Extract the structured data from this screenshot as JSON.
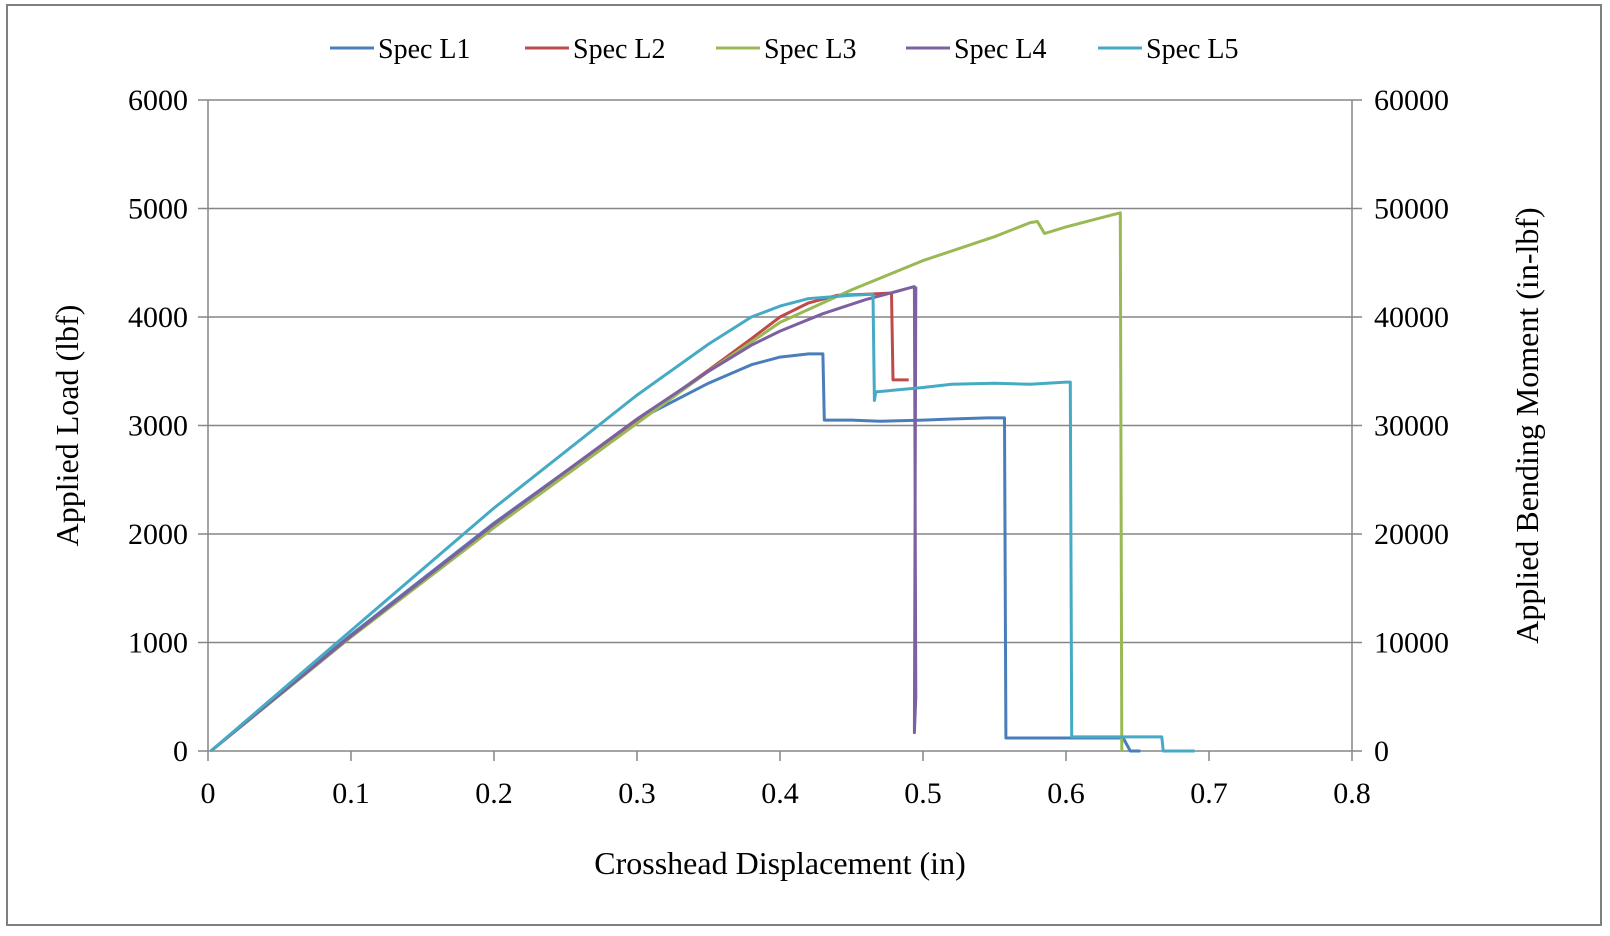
{
  "chart_data": {
    "type": "line",
    "title": "",
    "xlabel": "Crosshead Displacement (in)",
    "ylabel": "Applied Load (lbf)",
    "y2label": "Applied Bending Moment (in-lbf)",
    "xlim": [
      0,
      0.8
    ],
    "ylim": [
      0,
      6000
    ],
    "y2lim": [
      0,
      60000
    ],
    "xticks": [
      "0",
      "0.1",
      "0.2",
      "0.3",
      "0.4",
      "0.5",
      "0.6",
      "0.7",
      "0.8"
    ],
    "yticks": [
      "0",
      "1000",
      "2000",
      "3000",
      "4000",
      "5000",
      "6000"
    ],
    "y2ticks": [
      "0",
      "10000",
      "20000",
      "30000",
      "40000",
      "50000",
      "60000"
    ],
    "grid": true,
    "legend_position": "top",
    "series": [
      {
        "name": "Spec L1",
        "color": "#4a7ebb",
        "points": [
          [
            0.002,
            0
          ],
          [
            0.1,
            1070
          ],
          [
            0.2,
            2100
          ],
          [
            0.3,
            3050
          ],
          [
            0.35,
            3390
          ],
          [
            0.38,
            3560
          ],
          [
            0.4,
            3630
          ],
          [
            0.42,
            3660
          ],
          [
            0.43,
            3660
          ],
          [
            0.431,
            3050
          ],
          [
            0.45,
            3050
          ],
          [
            0.47,
            3040
          ],
          [
            0.5,
            3050
          ],
          [
            0.52,
            3060
          ],
          [
            0.545,
            3070
          ],
          [
            0.557,
            3070
          ],
          [
            0.558,
            120
          ],
          [
            0.62,
            120
          ],
          [
            0.64,
            120
          ],
          [
            0.645,
            0
          ],
          [
            0.652,
            0
          ]
        ]
      },
      {
        "name": "Spec L2",
        "color": "#be4b48",
        "points": [
          [
            0.002,
            0
          ],
          [
            0.1,
            1060
          ],
          [
            0.2,
            2080
          ],
          [
            0.3,
            3040
          ],
          [
            0.35,
            3510
          ],
          [
            0.38,
            3800
          ],
          [
            0.4,
            4000
          ],
          [
            0.42,
            4130
          ],
          [
            0.44,
            4200
          ],
          [
            0.46,
            4210
          ],
          [
            0.478,
            4220
          ],
          [
            0.479,
            3420
          ],
          [
            0.49,
            3420
          ]
        ]
      },
      {
        "name": "Spec L3",
        "color": "#98b954",
        "points": [
          [
            0.002,
            0
          ],
          [
            0.1,
            1050
          ],
          [
            0.2,
            2060
          ],
          [
            0.3,
            3020
          ],
          [
            0.35,
            3500
          ],
          [
            0.4,
            3950
          ],
          [
            0.45,
            4250
          ],
          [
            0.5,
            4520
          ],
          [
            0.55,
            4740
          ],
          [
            0.575,
            4870
          ],
          [
            0.58,
            4880
          ],
          [
            0.585,
            4770
          ],
          [
            0.6,
            4830
          ],
          [
            0.62,
            4900
          ],
          [
            0.638,
            4960
          ],
          [
            0.639,
            0
          ]
        ]
      },
      {
        "name": "Spec L4",
        "color": "#7d60a0",
        "points": [
          [
            0.002,
            0
          ],
          [
            0.1,
            1060
          ],
          [
            0.2,
            2090
          ],
          [
            0.3,
            3060
          ],
          [
            0.35,
            3500
          ],
          [
            0.38,
            3740
          ],
          [
            0.4,
            3870
          ],
          [
            0.43,
            4030
          ],
          [
            0.46,
            4160
          ],
          [
            0.48,
            4230
          ],
          [
            0.494,
            4280
          ],
          [
            0.495,
            500
          ],
          [
            0.494,
            170
          ],
          [
            0.495,
            4280
          ]
        ]
      },
      {
        "name": "Spec L5",
        "color": "#46aac5",
        "points": [
          [
            0.002,
            0
          ],
          [
            0.1,
            1110
          ],
          [
            0.2,
            2240
          ],
          [
            0.3,
            3280
          ],
          [
            0.35,
            3750
          ],
          [
            0.38,
            4000
          ],
          [
            0.4,
            4100
          ],
          [
            0.42,
            4170
          ],
          [
            0.45,
            4200
          ],
          [
            0.465,
            4210
          ],
          [
            0.466,
            3230
          ],
          [
            0.467,
            3310
          ],
          [
            0.5,
            3350
          ],
          [
            0.52,
            3380
          ],
          [
            0.55,
            3390
          ],
          [
            0.575,
            3380
          ],
          [
            0.6,
            3400
          ],
          [
            0.603,
            3400
          ],
          [
            0.604,
            130
          ],
          [
            0.64,
            130
          ],
          [
            0.667,
            130
          ],
          [
            0.668,
            0
          ],
          [
            0.685,
            0
          ],
          [
            0.69,
            0
          ]
        ]
      }
    ]
  }
}
